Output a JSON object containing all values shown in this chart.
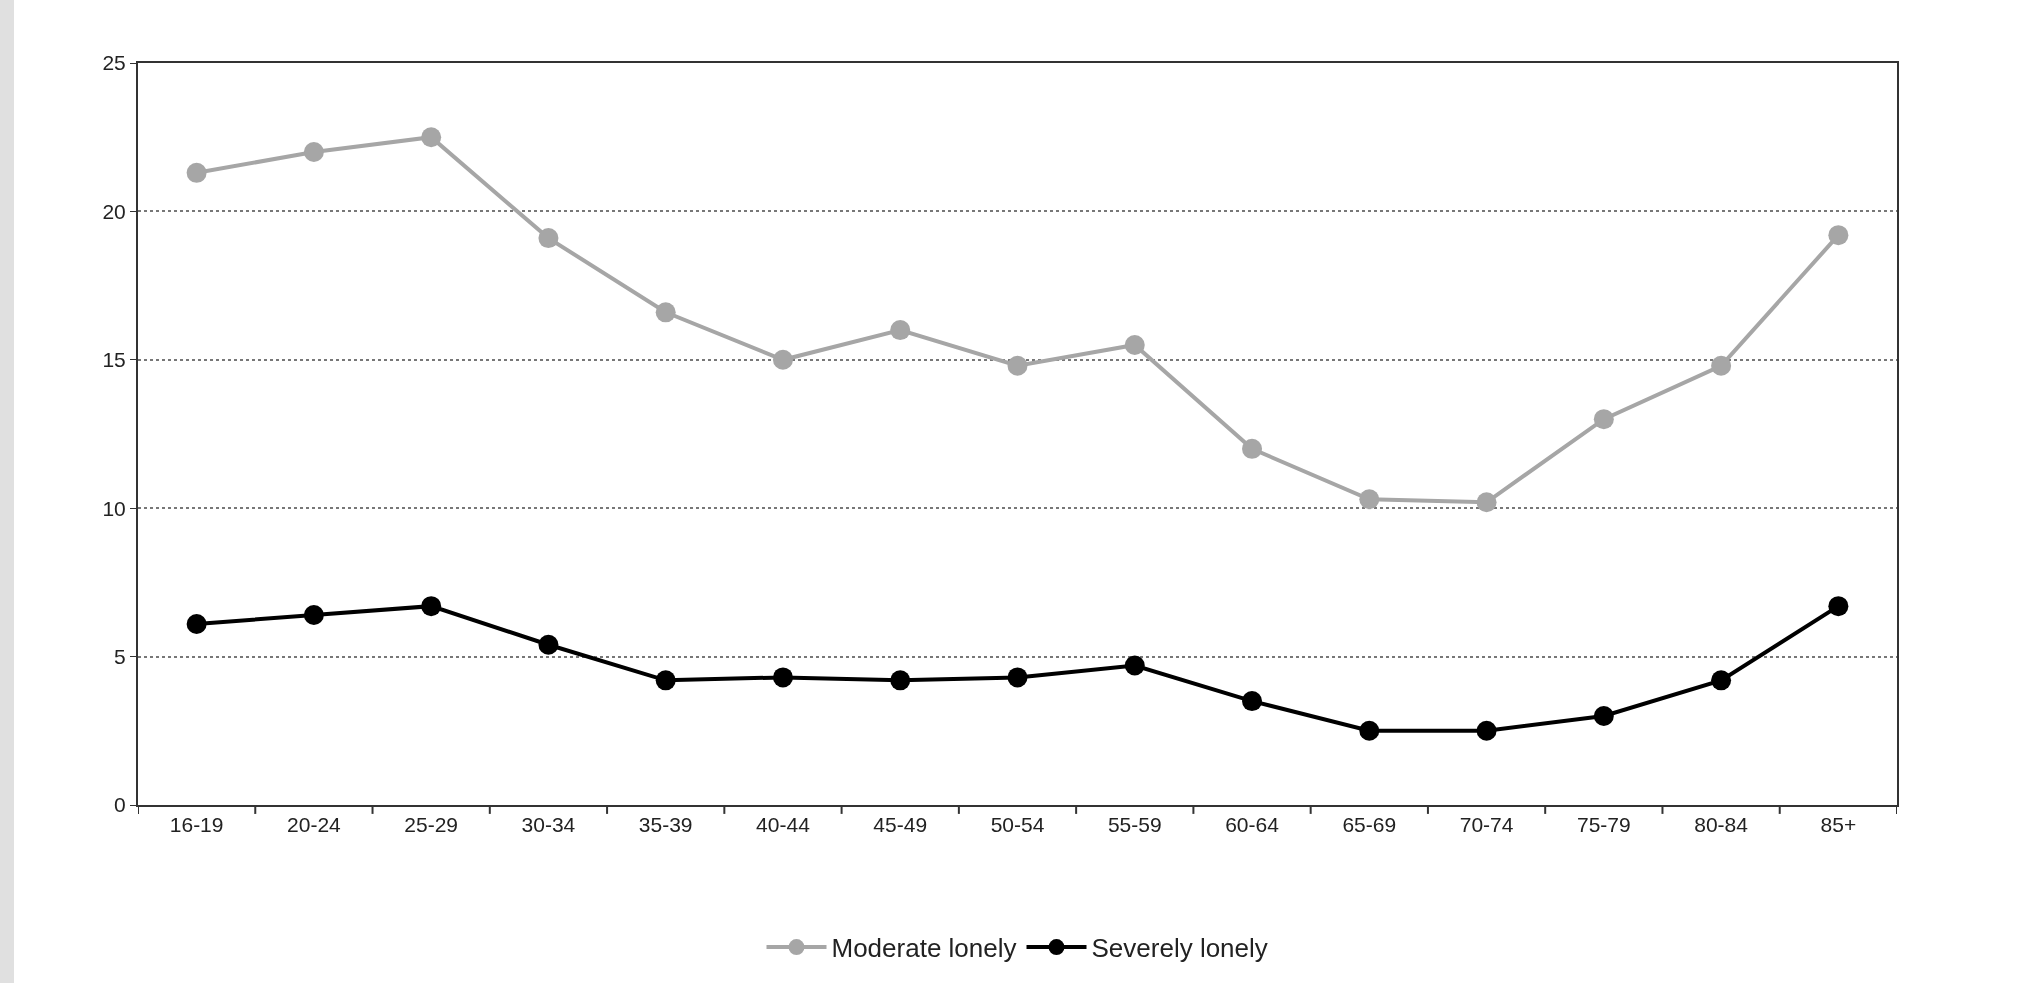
{
  "chart_data": {
    "type": "line",
    "categories": [
      "16-19",
      "20-24",
      "25-29",
      "30-34",
      "35-39",
      "40-44",
      "45-49",
      "50-54",
      "55-59",
      "60-64",
      "65-69",
      "70-74",
      "75-79",
      "80-84",
      "85+"
    ],
    "series": [
      {
        "name": "Moderate lonely",
        "color": "#a6a6a6",
        "values": [
          21.3,
          22.0,
          22.5,
          19.1,
          16.6,
          15.0,
          16.0,
          14.8,
          15.5,
          12.0,
          10.3,
          10.2,
          13.0,
          14.8,
          19.2
        ]
      },
      {
        "name": "Severely lonely",
        "color": "#000000",
        "values": [
          6.1,
          6.4,
          6.7,
          5.4,
          4.2,
          4.3,
          4.2,
          4.3,
          4.7,
          3.5,
          2.5,
          2.5,
          3.0,
          4.2,
          6.7
        ]
      }
    ],
    "ylim": [
      0,
      25
    ],
    "yticks": [
      0,
      5,
      10,
      15,
      20,
      25
    ],
    "grid": "y",
    "legend": "bottom",
    "marker": "circle",
    "line_style": "solid"
  }
}
